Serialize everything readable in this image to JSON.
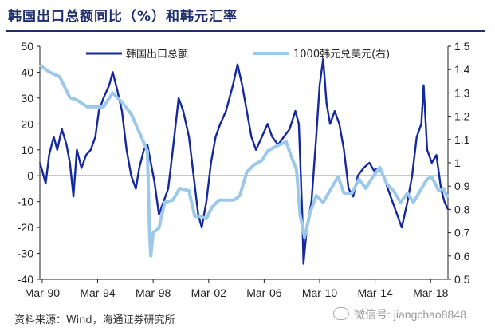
{
  "header": {
    "title": "韩国出口总额同比（%）和韩元汇率"
  },
  "footer": {
    "source": "资料来源：Wind，海通证券研究所",
    "watermark": "微信号: jiangchao8848"
  },
  "colors": {
    "exports": "#1428a0",
    "fx": "#9cc8ea",
    "title": "#1f2f6b"
  },
  "chart_data": {
    "type": "line",
    "legend_position": "top",
    "x_tick_labels": [
      "Mar-90",
      "Mar-94",
      "Mar-98",
      "Mar-02",
      "Mar-06",
      "Mar-10",
      "Mar-14",
      "Mar-18"
    ],
    "x_range": [
      "1990-01",
      "2019-06"
    ],
    "y_left": {
      "range": [
        -40,
        50
      ],
      "ticks": [
        -40,
        -30,
        -20,
        -10,
        0,
        10,
        20,
        30,
        40,
        50
      ]
    },
    "y_right": {
      "range": [
        0.5,
        1.5
      ],
      "ticks": [
        "0.5",
        "0.6",
        "0.7",
        "0.8",
        "0.9",
        "1",
        "1.1",
        "1.2",
        "1.3",
        "1.4",
        "1.5"
      ]
    },
    "series": [
      {
        "name": "韩国出口总额",
        "axis": "left",
        "points": [
          [
            "1990-01",
            5
          ],
          [
            "1990-03",
            2
          ],
          [
            "1990-06",
            -3
          ],
          [
            "1990-09",
            8
          ],
          [
            "1991-01",
            15
          ],
          [
            "1991-04",
            10
          ],
          [
            "1991-08",
            18
          ],
          [
            "1991-12",
            12
          ],
          [
            "1992-03",
            5
          ],
          [
            "1992-06",
            -8
          ],
          [
            "1992-09",
            10
          ],
          [
            "1993-01",
            3
          ],
          [
            "1993-05",
            8
          ],
          [
            "1993-09",
            10
          ],
          [
            "1994-01",
            15
          ],
          [
            "1994-04",
            25
          ],
          [
            "1994-08",
            30
          ],
          [
            "1995-01",
            35
          ],
          [
            "1995-04",
            40
          ],
          [
            "1995-08",
            33
          ],
          [
            "1995-12",
            25
          ],
          [
            "1996-04",
            10
          ],
          [
            "1996-08",
            0
          ],
          [
            "1996-12",
            -5
          ],
          [
            "1997-03",
            3
          ],
          [
            "1997-07",
            10
          ],
          [
            "1997-10",
            12
          ],
          [
            "1998-01",
            5
          ],
          [
            "1998-04",
            -2
          ],
          [
            "1998-08",
            -15
          ],
          [
            "1998-12",
            -10
          ],
          [
            "1999-04",
            -5
          ],
          [
            "1999-08",
            10
          ],
          [
            "2000-01",
            30
          ],
          [
            "2000-05",
            25
          ],
          [
            "2000-10",
            15
          ],
          [
            "2001-02",
            0
          ],
          [
            "2001-06",
            -15
          ],
          [
            "2001-09",
            -20
          ],
          [
            "2002-01",
            -10
          ],
          [
            "2002-05",
            5
          ],
          [
            "2002-09",
            15
          ],
          [
            "2003-01",
            20
          ],
          [
            "2003-06",
            25
          ],
          [
            "2003-12",
            35
          ],
          [
            "2004-04",
            43
          ],
          [
            "2004-08",
            35
          ],
          [
            "2004-12",
            25
          ],
          [
            "2005-04",
            15
          ],
          [
            "2005-08",
            10
          ],
          [
            "2006-01",
            15
          ],
          [
            "2006-06",
            20
          ],
          [
            "2006-10",
            15
          ],
          [
            "2007-03",
            12
          ],
          [
            "2007-08",
            15
          ],
          [
            "2008-01",
            18
          ],
          [
            "2008-06",
            25
          ],
          [
            "2008-09",
            20
          ],
          [
            "2008-12",
            -15
          ],
          [
            "2009-01",
            -34
          ],
          [
            "2009-04",
            -20
          ],
          [
            "2009-08",
            -10
          ],
          [
            "2009-12",
            15
          ],
          [
            "2010-03",
            35
          ],
          [
            "2010-06",
            45
          ],
          [
            "2010-09",
            28
          ],
          [
            "2010-12",
            20
          ],
          [
            "2011-04",
            25
          ],
          [
            "2011-08",
            20
          ],
          [
            "2011-12",
            10
          ],
          [
            "2012-04",
            -5
          ],
          [
            "2012-08",
            -8
          ],
          [
            "2012-12",
            0
          ],
          [
            "2013-05",
            3
          ],
          [
            "2013-10",
            5
          ],
          [
            "2014-02",
            2
          ],
          [
            "2014-06",
            3
          ],
          [
            "2014-10",
            0
          ],
          [
            "2015-02",
            -5
          ],
          [
            "2015-06",
            -10
          ],
          [
            "2015-10",
            -15
          ],
          [
            "2016-02",
            -20
          ],
          [
            "2016-07",
            -10
          ],
          [
            "2016-11",
            0
          ],
          [
            "2017-03",
            15
          ],
          [
            "2017-07",
            20
          ],
          [
            "2017-09",
            35
          ],
          [
            "2017-12",
            10
          ],
          [
            "2018-04",
            5
          ],
          [
            "2018-08",
            8
          ],
          [
            "2018-12",
            -5
          ],
          [
            "2019-03",
            -10
          ],
          [
            "2019-06",
            -13
          ]
        ]
      },
      {
        "name": "1000韩元兑美元(右)",
        "axis": "right",
        "points": [
          [
            "1990-01",
            1.42
          ],
          [
            "1990-09",
            1.39
          ],
          [
            "1991-06",
            1.37
          ],
          [
            "1992-03",
            1.28
          ],
          [
            "1992-09",
            1.27
          ],
          [
            "1993-06",
            1.24
          ],
          [
            "1994-01",
            1.24
          ],
          [
            "1994-08",
            1.24
          ],
          [
            "1995-04",
            1.3
          ],
          [
            "1995-12",
            1.26
          ],
          [
            "1996-08",
            1.21
          ],
          [
            "1997-04",
            1.12
          ],
          [
            "1997-10",
            1.05
          ],
          [
            "1997-12",
            0.68
          ],
          [
            "1998-01",
            0.6
          ],
          [
            "1998-03",
            0.7
          ],
          [
            "1998-08",
            0.72
          ],
          [
            "1999-01",
            0.83
          ],
          [
            "1999-08",
            0.84
          ],
          [
            "2000-02",
            0.89
          ],
          [
            "2000-10",
            0.88
          ],
          [
            "2001-03",
            0.77
          ],
          [
            "2001-08",
            0.77
          ],
          [
            "2002-01",
            0.76
          ],
          [
            "2002-06",
            0.81
          ],
          [
            "2002-12",
            0.84
          ],
          [
            "2003-06",
            0.84
          ],
          [
            "2004-01",
            0.84
          ],
          [
            "2004-06",
            0.86
          ],
          [
            "2004-12",
            0.96
          ],
          [
            "2005-06",
            0.99
          ],
          [
            "2006-01",
            1.01
          ],
          [
            "2006-06",
            1.05
          ],
          [
            "2007-01",
            1.07
          ],
          [
            "2007-10",
            1.09
          ],
          [
            "2008-03",
            1.02
          ],
          [
            "2008-07",
            0.97
          ],
          [
            "2008-10",
            0.78
          ],
          [
            "2009-02",
            0.68
          ],
          [
            "2009-07",
            0.79
          ],
          [
            "2009-12",
            0.86
          ],
          [
            "2010-06",
            0.83
          ],
          [
            "2011-01",
            0.89
          ],
          [
            "2011-07",
            0.94
          ],
          [
            "2011-12",
            0.87
          ],
          [
            "2012-07",
            0.87
          ],
          [
            "2013-01",
            0.93
          ],
          [
            "2013-07",
            0.89
          ],
          [
            "2014-01",
            0.94
          ],
          [
            "2014-07",
            0.98
          ],
          [
            "2015-01",
            0.91
          ],
          [
            "2015-07",
            0.88
          ],
          [
            "2016-01",
            0.83
          ],
          [
            "2016-07",
            0.87
          ],
          [
            "2016-12",
            0.83
          ],
          [
            "2017-06",
            0.88
          ],
          [
            "2017-12",
            0.93
          ],
          [
            "2018-04",
            0.94
          ],
          [
            "2018-10",
            0.88
          ],
          [
            "2019-02",
            0.89
          ],
          [
            "2019-06",
            0.85
          ]
        ]
      }
    ]
  }
}
